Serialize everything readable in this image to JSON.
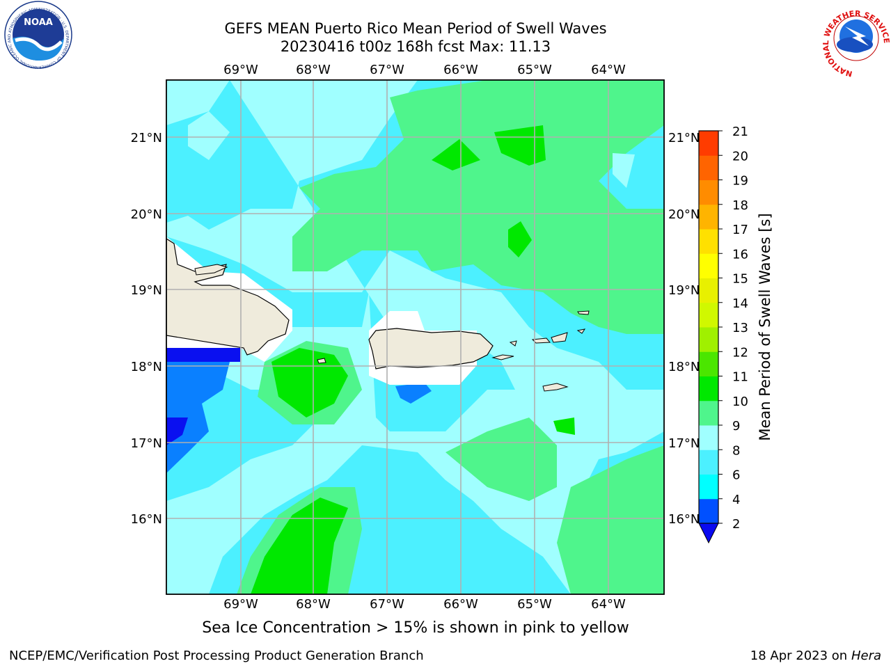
{
  "header": {
    "title_line1": "GEFS MEAN Puerto Rico Mean Period of Swell Waves",
    "title_line2": "20230416 t00z 168h fcst   Max: 11.13"
  },
  "logos": {
    "noaa_text": "NOAA",
    "noaa_ring_text": "NATIONAL OCEANIC AND ATMOSPHERIC ADMINISTRATION · U.S. DEPARTMENT OF COMMERCE",
    "nws_ring_text": "NATIONAL WEATHER SERVICE"
  },
  "map": {
    "lon_labels": [
      "69°W",
      "68°W",
      "67°W",
      "66°W",
      "65°W",
      "64°W"
    ],
    "lat_labels": [
      "21°N",
      "20°N",
      "19°N",
      "18°N",
      "17°N",
      "16°N"
    ],
    "land_color": "#efebdc",
    "gridline_color": "#b0b0b0"
  },
  "colorbar": {
    "label": "Mean Period of Swell Waves [s]",
    "ticks": [
      "2",
      "4",
      "6",
      "8",
      "9",
      "10",
      "11",
      "12",
      "13",
      "14",
      "15",
      "16",
      "17",
      "18",
      "19",
      "20",
      "21"
    ],
    "colors": [
      "#0050ff",
      "#00ffff",
      "#4cf0ff",
      "#a0ffff",
      "#4ff58c",
      "#00e800",
      "#4be600",
      "#a0f000",
      "#d0f800",
      "#e8f000",
      "#ffff00",
      "#ffe000",
      "#ffb400",
      "#ff8c00",
      "#ff6400",
      "#ff3c00"
    ],
    "under_color": "#0a0af0",
    "over_color": "#ff0000"
  },
  "subtitle": "Sea Ice Concentration > 15% is shown in pink to yellow",
  "footer": {
    "left": "NCEP/EMC/Verification Post Processing Product Generation Branch",
    "right_prefix": "18 Apr 2023 on ",
    "right_italic": "Hera"
  }
}
